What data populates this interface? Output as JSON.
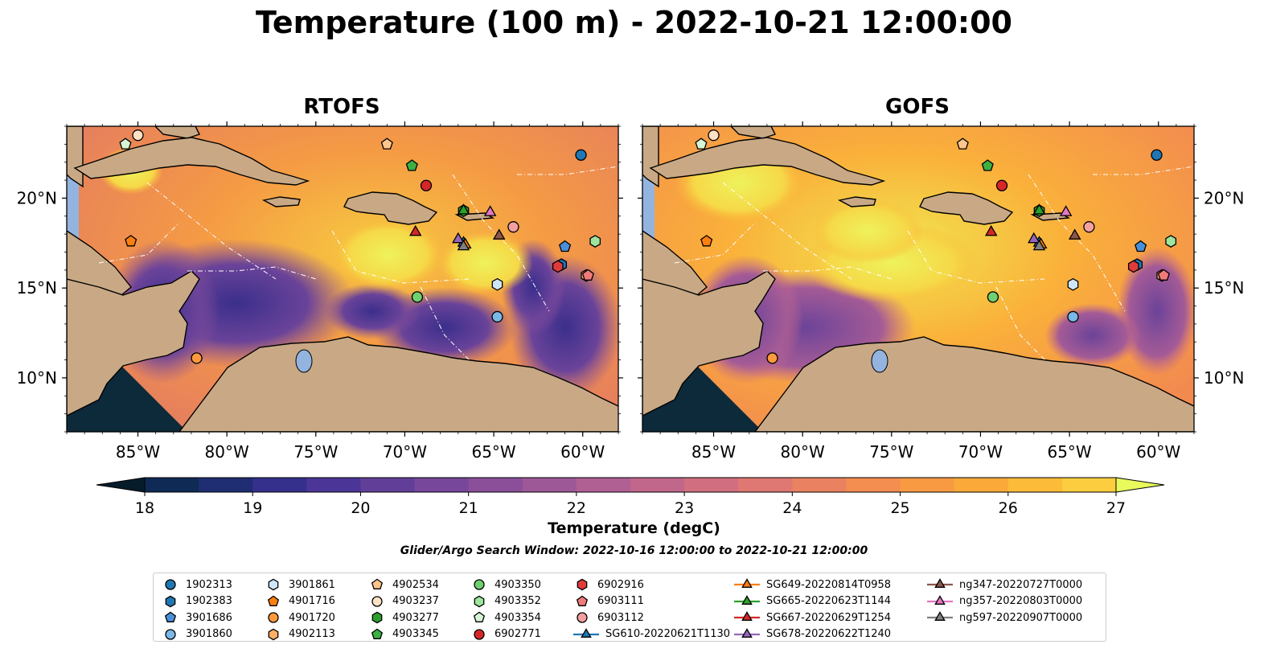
{
  "title": "Temperature (100 m) - 2022-10-21 12:00:00",
  "panels": [
    {
      "id": "rtofs",
      "title": "RTOFS"
    },
    {
      "id": "gofs",
      "title": "GOFS"
    }
  ],
  "colors": {
    "land": "#c9a985",
    "shallow_water": "#94b4e0",
    "outside_domain": "#0d2a3a",
    "boundary": "#ffffff",
    "coast": "#000000"
  },
  "colorbar": {
    "label": "Temperature (degC)",
    "ticks": [
      "18",
      "19",
      "20",
      "21",
      "22",
      "23",
      "24",
      "25",
      "26",
      "27"
    ],
    "colors": [
      "#06263a",
      "#0f2a55",
      "#1f2e72",
      "#34308b",
      "#4b3697",
      "#613f99",
      "#76479a",
      "#8b4f9a",
      "#9d5897",
      "#b06093",
      "#c1678b",
      "#d16f80",
      "#df7872",
      "#ea8261",
      "#f38d50",
      "#f89a42",
      "#fbaa3a",
      "#fcbb39",
      "#fbcd3f",
      "#f6e04c",
      "#eef25c"
    ],
    "extend_low": "#061c2b",
    "extend_high": "#e8fa5c"
  },
  "search_window": "Glider/Argo Search Window: 2022-10-16 12:00:00 to 2022-10-21 12:00:00",
  "chart_data": {
    "type": "heatmap",
    "variable": "Temperature",
    "depth": "100 m",
    "time": "2022-10-21 12:00:00",
    "units": "degC",
    "clim": [
      18,
      27
    ],
    "extend": "both",
    "lon_range": [
      -89,
      -58
    ],
    "lat_range": [
      7,
      24
    ],
    "x_ticks": [
      "85°W",
      "80°W",
      "75°W",
      "70°W",
      "65°W",
      "60°W"
    ],
    "x_tick_values": [
      -85,
      -80,
      -75,
      -70,
      -65,
      -60
    ],
    "y_ticks": [
      "20°N",
      "15°N",
      "10°N"
    ],
    "y_tick_values": [
      20,
      15,
      10
    ],
    "panels": [
      {
        "title": "RTOFS",
        "field_summary": {
          "typical": 25.5,
          "range": [
            19,
            27
          ]
        }
      },
      {
        "title": "GOFS",
        "field_summary": {
          "typical": 25.5,
          "range": [
            20.5,
            27
          ]
        }
      }
    ],
    "platforms": [
      {
        "id": "1902313",
        "marker": "circle",
        "color": "#1f77b4",
        "lon": -60.1,
        "lat": 22.4
      },
      {
        "id": "1902383",
        "marker": "hexagon",
        "color": "#1f77b4",
        "lon": -61.2,
        "lat": 16.3
      },
      {
        "id": "3901686",
        "marker": "pentagon",
        "color": "#4a90d9",
        "lon": -61.0,
        "lat": 17.3
      },
      {
        "id": "3901860",
        "marker": "circle",
        "color": "#7ab8e8",
        "lon": -64.8,
        "lat": 13.4
      },
      {
        "id": "3901861",
        "marker": "hexagon",
        "color": "#cfe6f8",
        "lon": -64.8,
        "lat": 15.2
      },
      {
        "id": "4901716",
        "marker": "pentagon",
        "color": "#ff7f0e",
        "lon": -85.4,
        "lat": 17.6
      },
      {
        "id": "4901720",
        "marker": "circle",
        "color": "#ff9a3c",
        "lon": -81.7,
        "lat": 11.1
      },
      {
        "id": "4902113",
        "marker": "hexagon",
        "color": "#ffb066",
        "lon": -59.8,
        "lat": 15.7
      },
      {
        "id": "4902534",
        "marker": "pentagon",
        "color": "#ffc58a",
        "lon": -71.0,
        "lat": 23.0
      },
      {
        "id": "4903237",
        "marker": "circle",
        "color": "#ffe2c4",
        "lon": -85.0,
        "lat": 23.5
      },
      {
        "id": "4903277",
        "marker": "hexagon",
        "color": "#2ca02c",
        "lon": -66.7,
        "lat": 19.3
      },
      {
        "id": "4903345",
        "marker": "pentagon",
        "color": "#3cb043",
        "lon": -69.6,
        "lat": 21.8
      },
      {
        "id": "4903350",
        "marker": "circle",
        "color": "#6fd06f",
        "lon": -69.3,
        "lat": 14.5
      },
      {
        "id": "4903352",
        "marker": "hexagon",
        "color": "#9de59d",
        "lon": -59.3,
        "lat": 17.6
      },
      {
        "id": "4903354",
        "marker": "pentagon",
        "color": "#d6f5d6",
        "lon": -85.7,
        "lat": 23.0
      },
      {
        "id": "6902771",
        "marker": "circle",
        "color": "#d62728",
        "lon": -68.8,
        "lat": 20.7
      },
      {
        "id": "6902916",
        "marker": "hexagon",
        "color": "#e03b3b",
        "lon": -61.4,
        "lat": 16.2
      },
      {
        "id": "6903111",
        "marker": "pentagon",
        "color": "#f07a7a",
        "lon": -59.7,
        "lat": 15.7
      },
      {
        "id": "6903112",
        "marker": "circle",
        "color": "#f4a0a0",
        "lon": -63.9,
        "lat": 18.4
      }
    ],
    "gliders": [
      {
        "id": "SG610-20220621T1130",
        "color": "#1f77b4",
        "lon": -66.7,
        "lat": 17.5
      },
      {
        "id": "SG649-20220814T0958",
        "color": "#ff7f0e",
        "lon": -66.6,
        "lat": 17.4
      },
      {
        "id": "SG665-20220623T1144",
        "color": "#2ca02c",
        "lon": -66.7,
        "lat": 19.3
      },
      {
        "id": "SG667-20220629T1254",
        "color": "#d62728",
        "lon": -69.4,
        "lat": 18.1
      },
      {
        "id": "SG678-20220622T1240",
        "color": "#9467bd",
        "lon": -67.0,
        "lat": 17.7
      },
      {
        "id": "ng347-20220727T0000",
        "color": "#8c564b",
        "lon": -64.7,
        "lat": 17.9
      },
      {
        "id": "ng357-20220803T0000",
        "color": "#e377c2",
        "lon": -65.2,
        "lat": 19.2
      },
      {
        "id": "ng597-20220907T0000",
        "color": "#7f7f7f",
        "lon": -66.7,
        "lat": 17.3
      }
    ]
  }
}
